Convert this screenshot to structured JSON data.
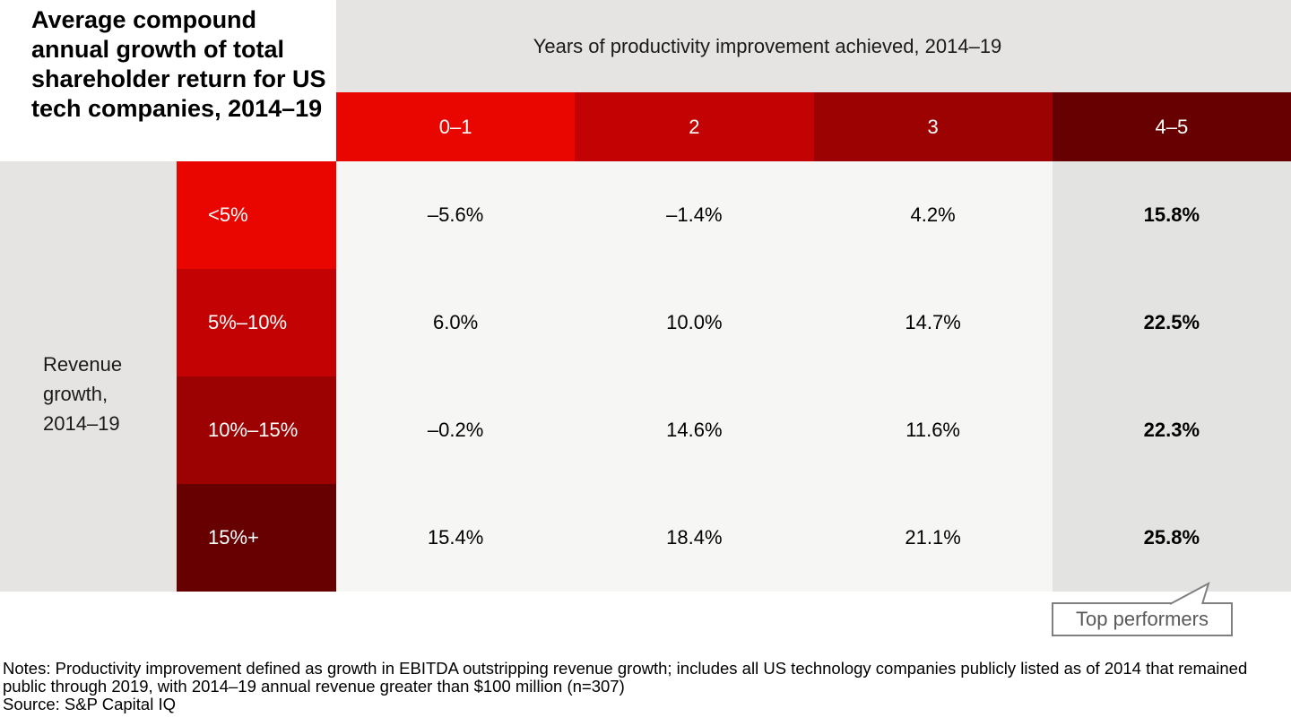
{
  "chart_data": {
    "type": "heatmap",
    "title": "Average compound annual growth of total shareholder return for US tech companies, 2014–19",
    "column_group_label": "Years of productivity improvement achieved, 2014–19",
    "row_group_label": "Revenue growth, 2014–19",
    "columns": [
      "0–1",
      "2",
      "3",
      "4–5"
    ],
    "rows": [
      "<5%",
      "5%–10%",
      "10%–15%",
      "15%+"
    ],
    "values": [
      [
        "–5.6%",
        "–1.4%",
        "4.2%",
        "15.8%"
      ],
      [
        "6.0%",
        "10.0%",
        "14.7%",
        "22.5%"
      ],
      [
        "–0.2%",
        "14.6%",
        "11.6%",
        "22.3%"
      ],
      [
        "15.4%",
        "18.4%",
        "21.1%",
        "25.8%"
      ]
    ],
    "highlighted_column": "4–5",
    "callout_label": "Top performers",
    "legend_position": "none",
    "grid": "off",
    "notes": "Notes: Productivity improvement defined as growth in EBITDA outstripping revenue growth; includes all US technology companies publicly listed as of 2014 that remained public through 2019, with 2014–19 annual revenue greater than $100 million (n=307)",
    "source": "Source: S&P Capital IQ"
  },
  "colors": {
    "red_scale": [
      "#ea0600",
      "#c30303",
      "#9d0202",
      "#670000"
    ],
    "band_gray": "#e5e4e2",
    "cell_bg": "#f6f6f5",
    "highlight_bg": "#e3e3e1",
    "value_text": "#000000",
    "header_text": "#ffffff",
    "callout_border": "#7f7f7f",
    "callout_text": "#595959"
  }
}
